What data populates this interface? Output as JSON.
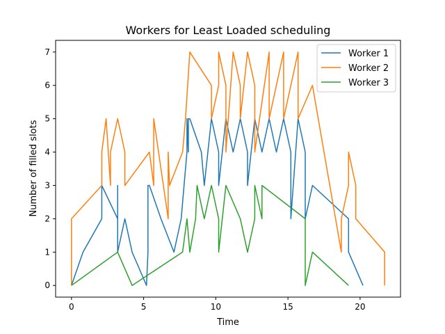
{
  "chart_data": {
    "type": "line",
    "title": "Workers for Least Loaded scheduling",
    "xlabel": "Time",
    "ylabel": "Number of filled slots",
    "xlim": [
      -1.1,
      22.8
    ],
    "ylim": [
      -0.35,
      7.35
    ],
    "xticks": [
      0,
      5,
      10,
      15,
      20
    ],
    "yticks": [
      0,
      1,
      2,
      3,
      4,
      5,
      6,
      7
    ],
    "grid": false,
    "legend_position": "top-right",
    "series": [
      {
        "name": "Worker 1",
        "color": "#1f77b4",
        "x": [
          0,
          0.8,
          2.1,
          2.1,
          3.2,
          3.2,
          3.2,
          3.7,
          4.2,
          5.2,
          5.3,
          5.3,
          5.4,
          6.2,
          7.1,
          7.6,
          7.8,
          8.0,
          8.0,
          8.1,
          8.1,
          8.2,
          9.0,
          9.2,
          9.7,
          10.2,
          10.2,
          10.7,
          11.2,
          11.7,
          12.2,
          12.2,
          12.7,
          13.2,
          13.7,
          14.2,
          14.7,
          15.2,
          15.2,
          15.7,
          16.2,
          16.2,
          16.7,
          19.2,
          19.2,
          20.2
        ],
        "y": [
          0,
          1,
          2,
          3,
          2,
          3,
          1,
          2,
          1,
          0,
          1,
          3,
          3,
          2,
          1,
          2,
          3,
          4,
          5,
          4,
          5,
          5,
          4,
          3,
          5,
          4,
          3,
          5,
          4,
          5,
          4,
          3,
          5,
          4,
          5,
          4,
          5,
          4,
          2,
          5,
          4,
          2,
          3,
          2,
          1,
          0
        ]
      },
      {
        "name": "Worker 2",
        "color": "#ff7f0e",
        "x": [
          0,
          0,
          2.1,
          2.1,
          2.4,
          2.7,
          2.7,
          3.2,
          3.7,
          3.7,
          5.4,
          5.7,
          5.7,
          6.7,
          6.7,
          6.8,
          7.7,
          7.9,
          8.2,
          9.7,
          9.7,
          10.2,
          10.2,
          10.7,
          10.7,
          11.2,
          11.7,
          11.7,
          12.2,
          12.7,
          12.7,
          13.7,
          13.7,
          14.7,
          14.7,
          15.7,
          15.7,
          16.7,
          18.7,
          18.7,
          19.2,
          19.2,
          19.7,
          19.7,
          21.7,
          21.7
        ],
        "y": [
          0,
          2,
          3,
          4,
          5,
          3,
          4,
          5,
          4,
          3,
          4,
          3,
          5,
          2,
          4,
          3,
          4,
          5,
          7,
          6,
          5,
          6,
          7,
          6,
          4,
          7,
          6,
          5,
          7,
          6,
          4,
          7,
          5,
          7,
          5,
          7,
          5,
          6,
          1,
          2,
          3,
          4,
          3,
          2,
          1,
          0
        ]
      },
      {
        "name": "Worker 3",
        "color": "#2ca02c",
        "x": [
          0,
          3.2,
          4.2,
          7.7,
          8.0,
          8.2,
          8.6,
          8.7,
          9.2,
          9.7,
          10.2,
          10.2,
          10.7,
          11.7,
          12.2,
          12.7,
          12.7,
          13.2,
          13.2,
          13.2,
          16.2,
          16.2,
          16.2,
          16.7,
          19.2
        ],
        "y": [
          0,
          1,
          0,
          1,
          2,
          1,
          2,
          3,
          2,
          3,
          2,
          1,
          3,
          2,
          1,
          2,
          3,
          2,
          3,
          3,
          2,
          1,
          0,
          1,
          0
        ]
      }
    ]
  }
}
